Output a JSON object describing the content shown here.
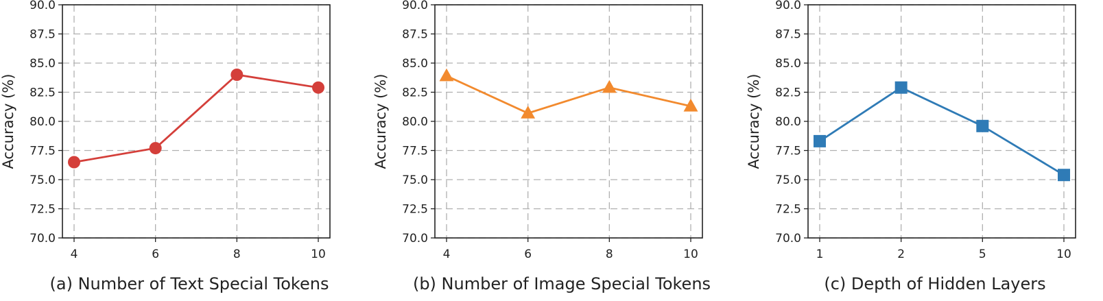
{
  "chart_data": [
    {
      "type": "line",
      "caption": "(a) Number of Text Special Tokens",
      "ylabel": "Accuracy (%)",
      "xlabel": "",
      "ylim": [
        70.0,
        90.0
      ],
      "yticks": [
        "70.0",
        "72.5",
        "75.0",
        "77.5",
        "80.0",
        "82.5",
        "85.0",
        "87.5",
        "90.0"
      ],
      "categories": [
        "4",
        "6",
        "8",
        "10"
      ],
      "series": [
        {
          "values": [
            76.5,
            77.7,
            84.0,
            82.9
          ],
          "color": "#d43f3a",
          "marker": "circle"
        }
      ],
      "grid": true
    },
    {
      "type": "line",
      "caption": "(b) Number of Image Special Tokens",
      "ylabel": "Accuracy (%)",
      "xlabel": "",
      "ylim": [
        70.0,
        90.0
      ],
      "yticks": [
        "70.0",
        "72.5",
        "75.0",
        "77.5",
        "80.0",
        "82.5",
        "85.0",
        "87.5",
        "90.0"
      ],
      "categories": [
        "4",
        "6",
        "8",
        "10"
      ],
      "series": [
        {
          "values": [
            83.9,
            80.7,
            82.9,
            81.3
          ],
          "color": "#f28a2e",
          "marker": "triangle"
        }
      ],
      "grid": true
    },
    {
      "type": "line",
      "caption": "(c) Depth of Hidden Layers",
      "ylabel": "Accuracy (%)",
      "xlabel": "",
      "ylim": [
        70.0,
        90.0
      ],
      "yticks": [
        "70.0",
        "72.5",
        "75.0",
        "77.5",
        "80.0",
        "82.5",
        "85.0",
        "87.5",
        "90.0"
      ],
      "categories": [
        "1",
        "2",
        "5",
        "10"
      ],
      "series": [
        {
          "values": [
            78.3,
            82.9,
            79.6,
            75.4
          ],
          "color": "#2f7bb6",
          "marker": "square"
        }
      ],
      "grid": true
    }
  ]
}
